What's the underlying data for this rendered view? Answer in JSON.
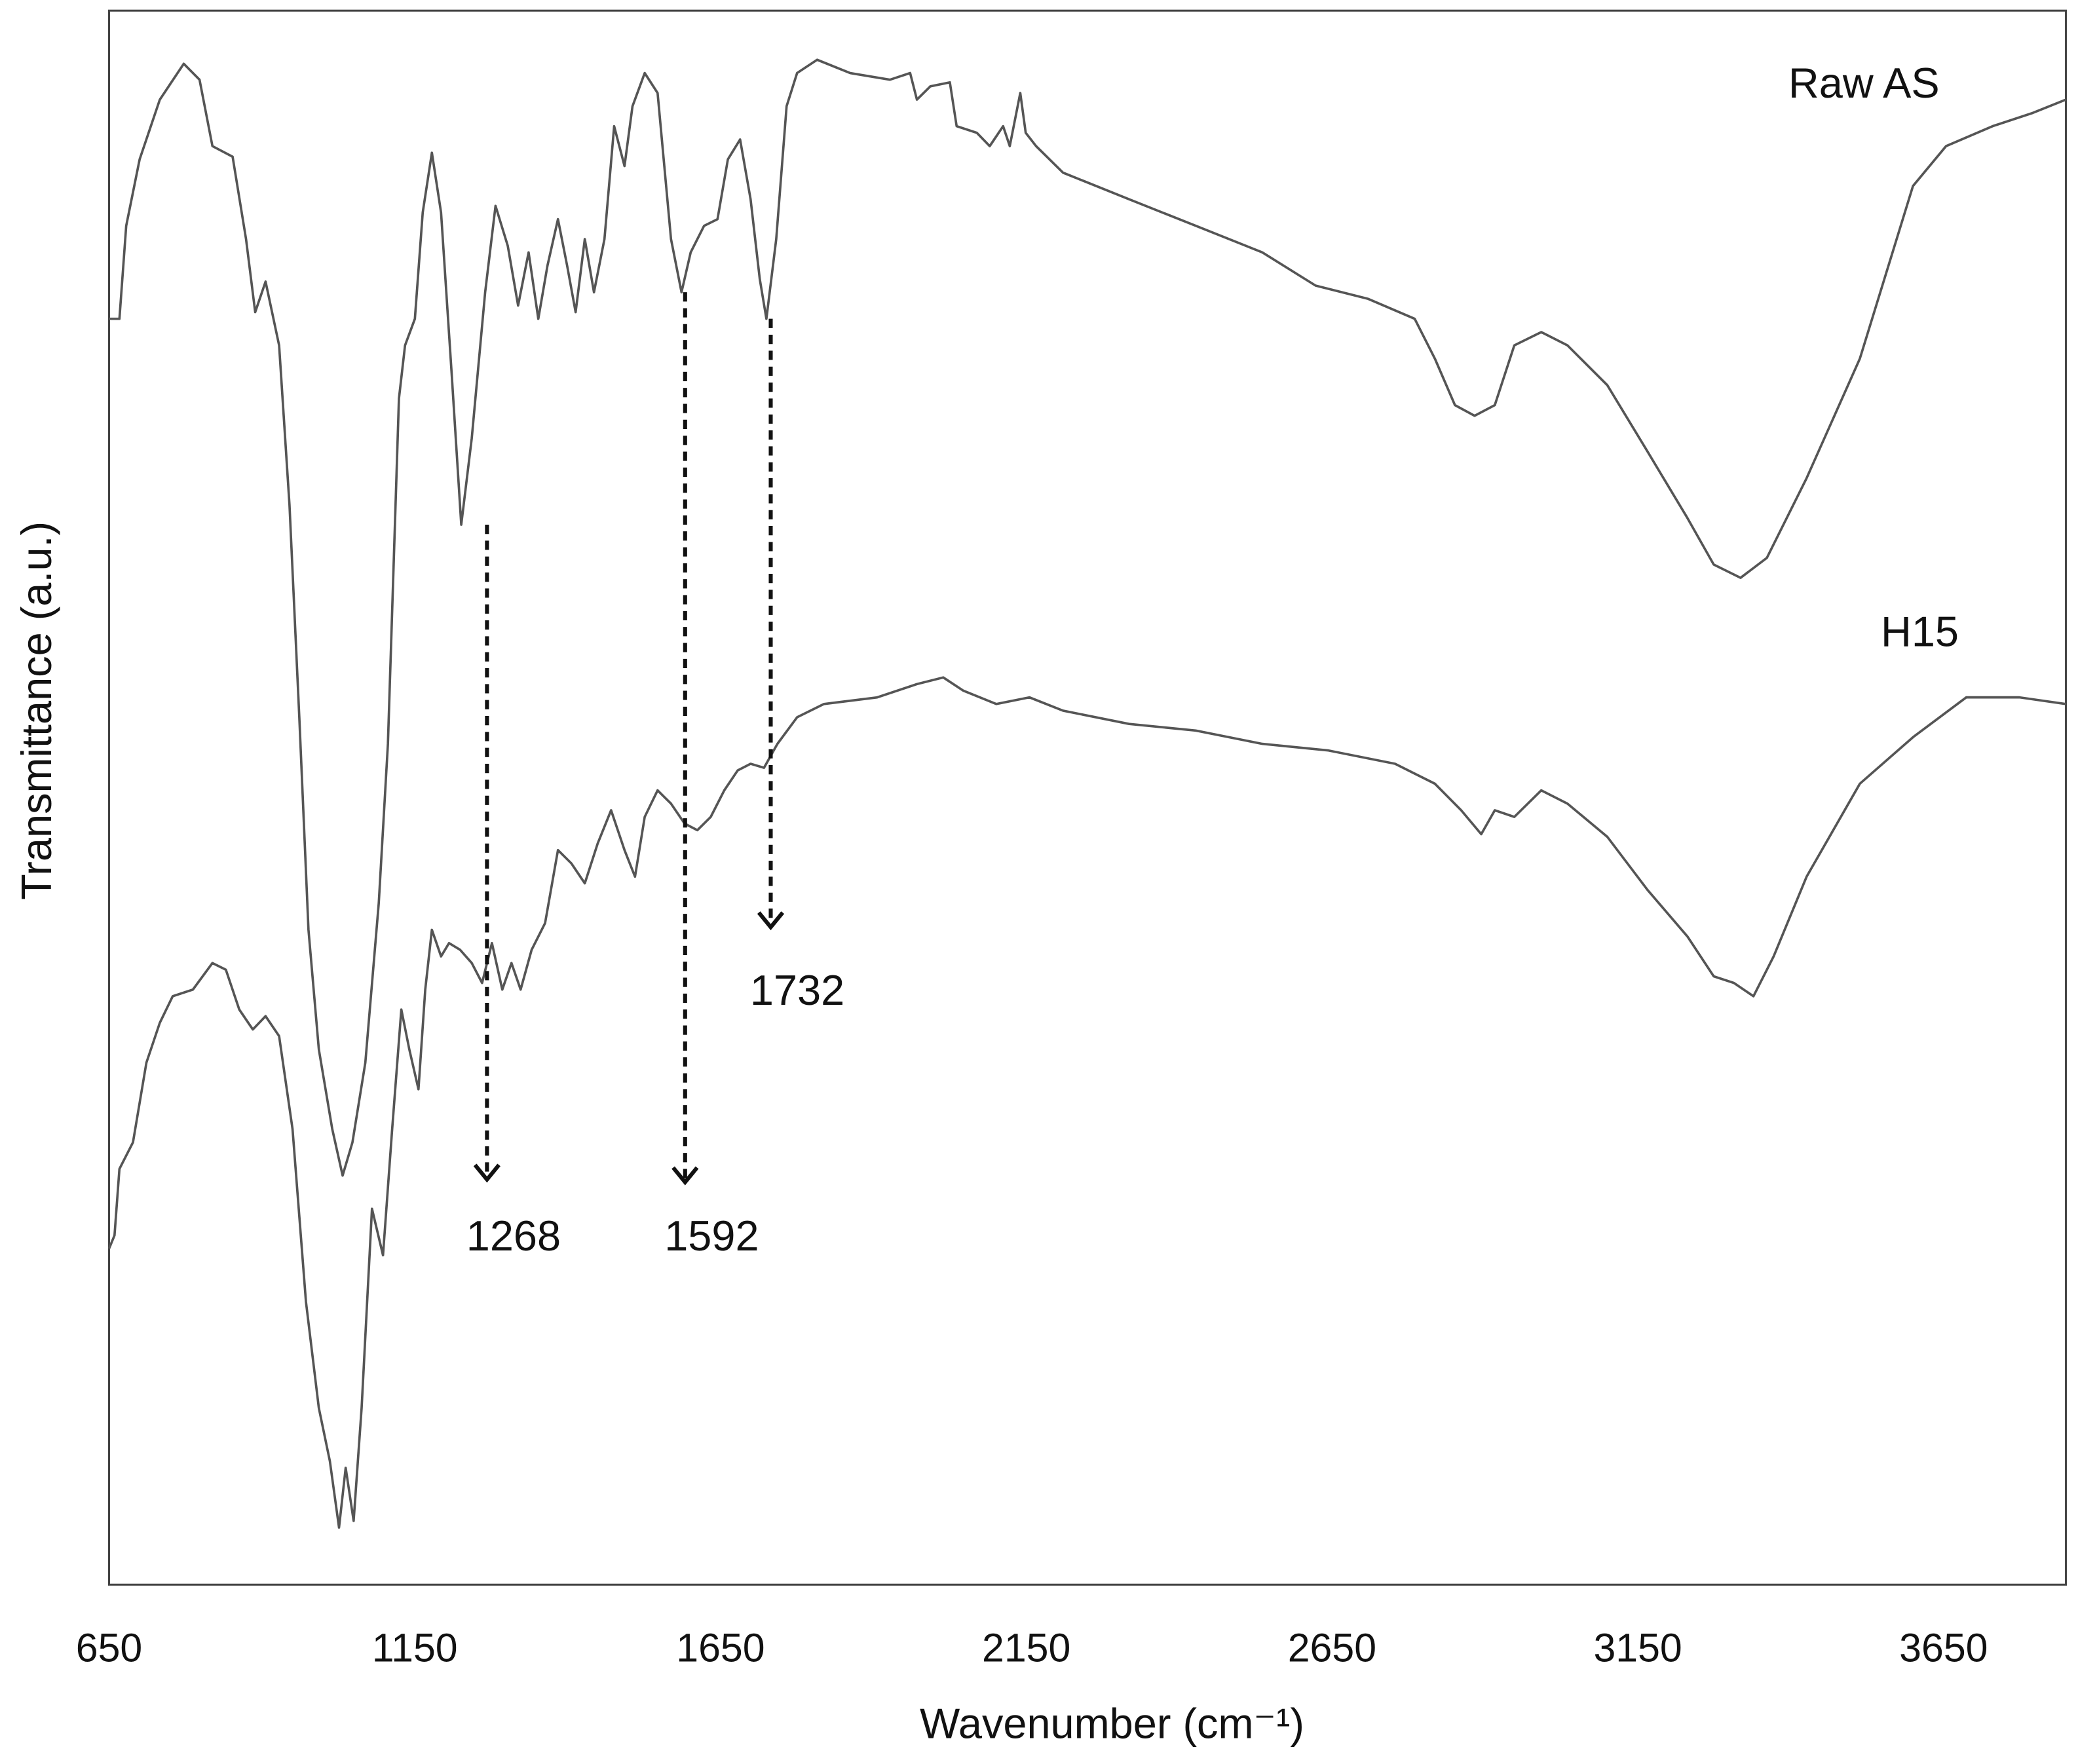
{
  "chart_data": {
    "type": "line",
    "xlabel": "Wavenumber (cm⁻¹)",
    "ylabel": "Transmittance (a.u.)",
    "xlim": [
      650,
      3850
    ],
    "xticks": [
      650,
      1150,
      1650,
      2150,
      2650,
      3150,
      3650
    ],
    "ylim": [
      0,
      118.5
    ],
    "grid": false,
    "annotations": [
      {
        "text": "1268",
        "x": 1268
      },
      {
        "text": "1592",
        "x": 1592
      },
      {
        "text": "1732",
        "x": 1732
      }
    ],
    "series": [
      {
        "name": "Raw AS",
        "color": "#555555",
        "x": [
          650,
          667,
          678,
          700,
          733,
          772,
          798,
          819,
          852,
          874,
          889,
          906,
          928,
          945,
          961,
          976,
          993,
          1015,
          1032,
          1048,
          1069,
          1091,
          1106,
          1124,
          1134,
          1150,
          1163,
          1178,
          1193,
          1210,
          1226,
          1243,
          1265,
          1282,
          1302,
          1319,
          1336,
          1352,
          1367,
          1384,
          1399,
          1413,
          1428,
          1443,
          1460,
          1476,
          1493,
          1506,
          1526,
          1547,
          1569,
          1586,
          1601,
          1623,
          1645,
          1662,
          1682,
          1699,
          1714,
          1725,
          1741,
          1758,
          1775,
          1808,
          1862,
          1927,
          1960,
          1971,
          1993,
          2025,
          2036,
          2069,
          2090,
          2112,
          2123,
          2140,
          2149,
          2166,
          2210,
          2318,
          2427,
          2536,
          2623,
          2709,
          2785,
          2818,
          2851,
          2883,
          2916,
          2948,
          2992,
          3035,
          3100,
          3166,
          3231,
          3274,
          3318,
          3361,
          3426,
          3513,
          3600,
          3654,
          3730,
          3796,
          3850
        ],
        "values": [
          95.3,
          95.3,
          102.3,
          107.3,
          111.8,
          114.5,
          113.3,
          108.3,
          107.5,
          101.3,
          95.8,
          98.1,
          93.3,
          81.3,
          65.3,
          49.3,
          40.3,
          34.3,
          30.8,
          33.3,
          39.3,
          51.3,
          63.3,
          89.3,
          93.3,
          95.3,
          103.3,
          107.8,
          103.3,
          91.3,
          79.8,
          86.3,
          97.3,
          103.8,
          100.8,
          96.3,
          100.3,
          95.3,
          99.3,
          102.8,
          99.3,
          95.8,
          101.3,
          97.3,
          101.3,
          109.8,
          106.8,
          111.3,
          113.8,
          112.3,
          101.3,
          97.3,
          100.3,
          102.3,
          102.8,
          107.3,
          108.8,
          104.3,
          98.3,
          95.3,
          101.3,
          111.3,
          113.8,
          114.8,
          113.8,
          113.3,
          113.8,
          111.8,
          112.8,
          113.1,
          109.8,
          109.3,
          108.3,
          109.8,
          108.3,
          112.3,
          109.3,
          108.3,
          106.3,
          104.3,
          102.3,
          100.3,
          97.8,
          96.8,
          95.3,
          92.3,
          88.8,
          88.0,
          88.8,
          93.3,
          94.3,
          93.3,
          90.3,
          85.3,
          80.3,
          76.8,
          75.8,
          77.3,
          83.3,
          92.3,
          105.3,
          108.3,
          109.8,
          110.8,
          111.8
        ]
      },
      {
        "name": "H15",
        "color": "#555555",
        "x": [
          650,
          659,
          667,
          689,
          711,
          733,
          754,
          787,
          819,
          841,
          863,
          885,
          906,
          928,
          950,
          972,
          993,
          1011,
          1026,
          1037,
          1050,
          1063,
          1080,
          1098,
          1113,
          1128,
          1141,
          1156,
          1167,
          1178,
          1193,
          1206,
          1224,
          1243,
          1260,
          1276,
          1293,
          1308,
          1323,
          1341,
          1363,
          1384,
          1406,
          1428,
          1449,
          1471,
          1493,
          1510,
          1526,
          1547,
          1569,
          1591,
          1612,
          1634,
          1656,
          1678,
          1699,
          1721,
          1743,
          1775,
          1819,
          1906,
          1971,
          2014,
          2047,
          2101,
          2155,
          2210,
          2318,
          2427,
          2536,
          2644,
          2753,
          2818,
          2861,
          2894,
          2916,
          2948,
          2992,
          3035,
          3100,
          3166,
          3231,
          3274,
          3307,
          3339,
          3372,
          3426,
          3513,
          3600,
          3687,
          3774,
          3850
        ],
        "values": [
          25.3,
          26.3,
          31.3,
          33.3,
          39.3,
          42.3,
          44.3,
          44.8,
          46.8,
          46.3,
          43.3,
          41.8,
          42.8,
          41.3,
          34.3,
          21.3,
          13.3,
          9.3,
          4.3,
          8.8,
          4.8,
          13.3,
          28.3,
          24.8,
          34.3,
          43.3,
          40.3,
          37.3,
          44.8,
          49.3,
          47.3,
          48.3,
          47.8,
          46.8,
          45.3,
          48.3,
          44.8,
          46.8,
          44.8,
          47.8,
          49.8,
          55.3,
          54.3,
          52.8,
          55.8,
          58.3,
          55.3,
          53.3,
          57.8,
          59.8,
          58.8,
          57.3,
          56.8,
          57.8,
          59.8,
          61.3,
          61.8,
          61.5,
          63.3,
          65.3,
          66.3,
          66.8,
          67.8,
          68.3,
          67.3,
          66.3,
          66.8,
          65.8,
          64.8,
          64.3,
          63.3,
          62.8,
          61.8,
          60.3,
          58.3,
          56.5,
          58.3,
          57.8,
          59.8,
          58.8,
          56.3,
          52.3,
          48.8,
          45.8,
          45.3,
          44.3,
          47.3,
          53.3,
          60.3,
          63.8,
          66.8,
          66.8,
          66.3
        ]
      }
    ]
  }
}
